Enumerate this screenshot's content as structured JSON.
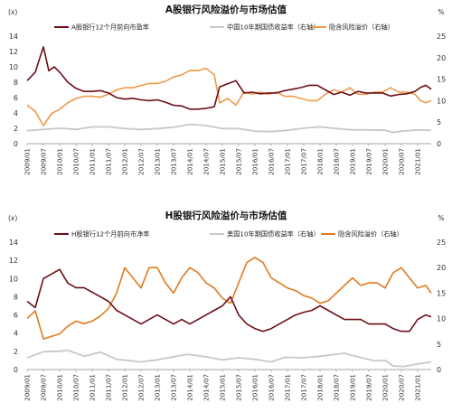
{
  "chart_data": [
    {
      "type": "line",
      "title": "A股银行风险溢价与市场估值",
      "left_unit": "(x)",
      "right_unit": "%",
      "ylim_left": [
        0,
        14
      ],
      "yticks_left": [
        "0",
        "2",
        "4",
        "6",
        "8",
        "10",
        "12",
        "14"
      ],
      "ylim_right": [
        0,
        25
      ],
      "yticks_right": [
        "0",
        "5",
        "10",
        "15",
        "20",
        "25"
      ],
      "x_range": [
        "2009-01",
        "2021-06"
      ],
      "x_tick_labels": [
        "2009/01",
        "2009/07",
        "2010/01",
        "2010/07",
        "2011/01",
        "2011/07",
        "2012/01",
        "2012/07",
        "2013/01",
        "2013/07",
        "2014/01",
        "2014/07",
        "2015/01",
        "2015/07",
        "2016/01",
        "2016/07",
        "2017/01",
        "2017/07",
        "2018/01",
        "2018/07",
        "2019/01",
        "2019/07",
        "2020/01",
        "2020/07",
        "2021/01"
      ],
      "legend_position": "top",
      "grid": false,
      "series": [
        {
          "name": "A股银行12个月前向市盈率",
          "axis": "left",
          "color": "#6b0f15",
          "x": [
            "2009-01",
            "2009-04",
            "2009-07",
            "2009-09",
            "2009-11",
            "2010-01",
            "2010-04",
            "2010-07",
            "2010-10",
            "2011-01",
            "2011-04",
            "2011-07",
            "2011-10",
            "2012-01",
            "2012-04",
            "2012-07",
            "2012-10",
            "2013-01",
            "2013-04",
            "2013-07",
            "2013-10",
            "2014-01",
            "2014-04",
            "2014-07",
            "2014-10",
            "2014-12",
            "2015-03",
            "2015-06",
            "2015-09",
            "2015-12",
            "2016-03",
            "2016-06",
            "2016-09",
            "2016-12",
            "2017-03",
            "2017-06",
            "2017-09",
            "2017-12",
            "2018-03",
            "2018-06",
            "2018-09",
            "2018-12",
            "2019-03",
            "2019-06",
            "2019-09",
            "2019-12",
            "2020-03",
            "2020-06",
            "2020-09",
            "2020-12",
            "2021-02",
            "2021-04",
            "2021-06"
          ],
          "values": [
            8.2,
            9.3,
            12.6,
            9.5,
            10.0,
            9.3,
            8.0,
            7.2,
            6.8,
            6.8,
            6.9,
            6.6,
            6.0,
            5.8,
            5.9,
            5.7,
            5.6,
            5.7,
            5.4,
            5.0,
            4.9,
            4.5,
            4.5,
            4.6,
            4.8,
            7.4,
            7.8,
            8.2,
            6.6,
            6.7,
            6.5,
            6.6,
            6.6,
            6.9,
            7.1,
            7.3,
            7.6,
            7.6,
            7.0,
            6.4,
            6.7,
            6.3,
            6.8,
            6.6,
            6.6,
            6.6,
            6.2,
            6.4,
            6.5,
            6.8,
            7.3,
            7.6,
            7.1
          ]
        },
        {
          "name": "中国10年期国债收益率（右轴）",
          "axis": "right",
          "color": "#c8c8c8",
          "x": [
            "2009-01",
            "2009-07",
            "2010-01",
            "2010-07",
            "2011-01",
            "2011-07",
            "2012-01",
            "2012-07",
            "2013-01",
            "2013-07",
            "2014-01",
            "2014-07",
            "2015-01",
            "2015-07",
            "2016-01",
            "2016-07",
            "2017-01",
            "2017-07",
            "2018-01",
            "2018-07",
            "2019-01",
            "2019-07",
            "2020-01",
            "2020-04",
            "2020-07",
            "2021-01",
            "2021-06"
          ],
          "values": [
            3.0,
            3.3,
            3.6,
            3.3,
            3.9,
            3.9,
            3.5,
            3.3,
            3.5,
            3.8,
            4.5,
            4.2,
            3.5,
            3.5,
            2.9,
            2.8,
            3.1,
            3.6,
            3.9,
            3.5,
            3.2,
            3.2,
            3.1,
            2.6,
            2.9,
            3.2,
            3.1
          ]
        },
        {
          "name": "隐含风险溢价（右轴）",
          "axis": "right",
          "color": "#ed9a4a",
          "x": [
            "2009-01",
            "2009-04",
            "2009-07",
            "2009-10",
            "2010-01",
            "2010-04",
            "2010-07",
            "2010-10",
            "2011-01",
            "2011-04",
            "2011-07",
            "2011-10",
            "2012-01",
            "2012-04",
            "2012-07",
            "2012-10",
            "2013-01",
            "2013-04",
            "2013-07",
            "2013-10",
            "2014-01",
            "2014-04",
            "2014-07",
            "2014-10",
            "2014-12",
            "2015-03",
            "2015-06",
            "2015-09",
            "2015-12",
            "2016-03",
            "2016-06",
            "2016-09",
            "2016-12",
            "2017-03",
            "2017-06",
            "2017-09",
            "2017-12",
            "2018-03",
            "2018-06",
            "2018-09",
            "2018-12",
            "2019-03",
            "2019-06",
            "2019-09",
            "2019-12",
            "2020-03",
            "2020-06",
            "2020-09",
            "2020-12",
            "2021-02",
            "2021-04",
            "2021-06"
          ],
          "values": [
            9.0,
            7.5,
            4.2,
            7.0,
            8.0,
            9.5,
            10.5,
            11.0,
            11.0,
            10.8,
            11.5,
            12.5,
            13.0,
            13.0,
            13.5,
            14.0,
            14.0,
            14.5,
            15.5,
            16.0,
            17.0,
            17.0,
            17.5,
            16.0,
            9.5,
            10.5,
            9.0,
            12.0,
            11.5,
            12.0,
            11.5,
            12.0,
            11.0,
            11.0,
            10.5,
            10.0,
            10.0,
            11.5,
            12.5,
            12.0,
            13.0,
            11.5,
            11.5,
            12.0,
            12.0,
            13.0,
            12.0,
            12.0,
            11.5,
            10.0,
            9.5,
            10.0
          ]
        }
      ]
    },
    {
      "type": "line",
      "title": "H股银行风险溢价与市场估值",
      "left_unit": "(x)",
      "right_unit": "%",
      "ylim_left": [
        0,
        14
      ],
      "yticks_left": [
        "0",
        "2",
        "4",
        "6",
        "8",
        "10",
        "12",
        "14"
      ],
      "ylim_right": [
        0,
        25
      ],
      "yticks_right": [
        "0",
        "5",
        "10",
        "15",
        "20",
        "25"
      ],
      "x_range": [
        "2009-01",
        "2021-06"
      ],
      "x_tick_labels": [
        "2009/01",
        "2009/07",
        "2010/01",
        "2010/07",
        "2011/01",
        "2011/07",
        "2012/01",
        "2012/07",
        "2013/01",
        "2013/07",
        "2014/01",
        "2014/07",
        "2015/01",
        "2015/07",
        "2016/01",
        "2016/07",
        "2017/01",
        "2017/07",
        "2018/01",
        "2018/07",
        "2019/01",
        "2019/07",
        "2020/01",
        "2020/07",
        "2021/01"
      ],
      "legend_position": "top",
      "grid": false,
      "series": [
        {
          "name": "H股银行12个月前向市净率",
          "axis": "left",
          "color": "#6b0f15",
          "x": [
            "2009-01",
            "2009-04",
            "2009-07",
            "2009-10",
            "2010-01",
            "2010-04",
            "2010-07",
            "2010-10",
            "2011-01",
            "2011-04",
            "2011-07",
            "2011-10",
            "2012-01",
            "2012-04",
            "2012-07",
            "2012-10",
            "2013-01",
            "2013-04",
            "2013-07",
            "2013-10",
            "2014-01",
            "2014-04",
            "2014-07",
            "2014-10",
            "2015-01",
            "2015-04",
            "2015-07",
            "2015-10",
            "2016-01",
            "2016-04",
            "2016-07",
            "2016-10",
            "2017-01",
            "2017-04",
            "2017-07",
            "2017-10",
            "2018-01",
            "2018-04",
            "2018-07",
            "2018-10",
            "2019-01",
            "2019-04",
            "2019-07",
            "2019-10",
            "2020-01",
            "2020-04",
            "2020-07",
            "2020-10",
            "2021-01",
            "2021-04",
            "2021-06"
          ],
          "values": [
            7.5,
            6.8,
            10.0,
            10.5,
            11.0,
            9.5,
            9.0,
            9.0,
            8.5,
            8.0,
            7.5,
            6.5,
            6.0,
            5.5,
            5.0,
            5.5,
            6.0,
            5.5,
            5.0,
            5.5,
            5.0,
            5.5,
            6.0,
            6.5,
            7.0,
            8.0,
            6.0,
            5.0,
            4.5,
            4.2,
            4.5,
            5.0,
            5.5,
            6.0,
            6.3,
            6.5,
            7.0,
            6.5,
            6.0,
            5.5,
            5.5,
            5.5,
            5.0,
            5.0,
            5.0,
            4.5,
            4.2,
            4.2,
            5.5,
            6.0,
            5.8
          ]
        },
        {
          "name": "美国10年期国债收益率（右轴）",
          "axis": "right",
          "color": "#c8c8c8",
          "x": [
            "2009-01",
            "2009-07",
            "2010-01",
            "2010-04",
            "2010-10",
            "2011-04",
            "2011-10",
            "2012-07",
            "2013-01",
            "2013-07",
            "2013-12",
            "2014-07",
            "2015-01",
            "2015-07",
            "2016-01",
            "2016-07",
            "2016-12",
            "2017-07",
            "2018-01",
            "2018-10",
            "2019-03",
            "2019-09",
            "2020-01",
            "2020-04",
            "2020-08",
            "2021-01",
            "2021-06"
          ],
          "values": [
            2.3,
            3.5,
            3.6,
            3.8,
            2.6,
            3.4,
            2.0,
            1.5,
            1.9,
            2.5,
            3.0,
            2.5,
            1.9,
            2.3,
            2.0,
            1.5,
            2.4,
            2.3,
            2.6,
            3.2,
            2.5,
            1.7,
            1.8,
            0.7,
            0.6,
            1.1,
            1.5
          ]
        },
        {
          "name": "隐含风险溢价（右轴）",
          "axis": "right",
          "color": "#e07b1f",
          "x": [
            "2009-01",
            "2009-04",
            "2009-07",
            "2009-10",
            "2010-01",
            "2010-04",
            "2010-07",
            "2010-10",
            "2011-01",
            "2011-04",
            "2011-07",
            "2011-10",
            "2012-01",
            "2012-04",
            "2012-07",
            "2012-10",
            "2013-01",
            "2013-04",
            "2013-07",
            "2013-10",
            "2014-01",
            "2014-04",
            "2014-07",
            "2014-10",
            "2015-01",
            "2015-04",
            "2015-07",
            "2015-10",
            "2016-01",
            "2016-04",
            "2016-07",
            "2016-10",
            "2017-01",
            "2017-04",
            "2017-07",
            "2017-10",
            "2018-01",
            "2018-04",
            "2018-07",
            "2018-10",
            "2019-01",
            "2019-04",
            "2019-07",
            "2019-10",
            "2020-01",
            "2020-04",
            "2020-07",
            "2020-10",
            "2021-01",
            "2021-04",
            "2021-06"
          ],
          "values": [
            10.0,
            11.5,
            6.0,
            6.5,
            7.0,
            8.5,
            9.5,
            9.0,
            9.5,
            10.5,
            12.0,
            15.0,
            20.0,
            18.0,
            16.0,
            20.0,
            20.0,
            17.0,
            15.0,
            18.0,
            20.0,
            19.0,
            17.0,
            16.0,
            14.0,
            13.0,
            17.0,
            21.0,
            22.0,
            21.0,
            18.0,
            17.0,
            16.0,
            15.5,
            14.5,
            14.0,
            13.0,
            13.5,
            15.0,
            16.5,
            18.0,
            16.5,
            17.0,
            17.0,
            16.0,
            19.0,
            20.0,
            18.0,
            16.0,
            16.5,
            15.0
          ]
        }
      ]
    }
  ]
}
